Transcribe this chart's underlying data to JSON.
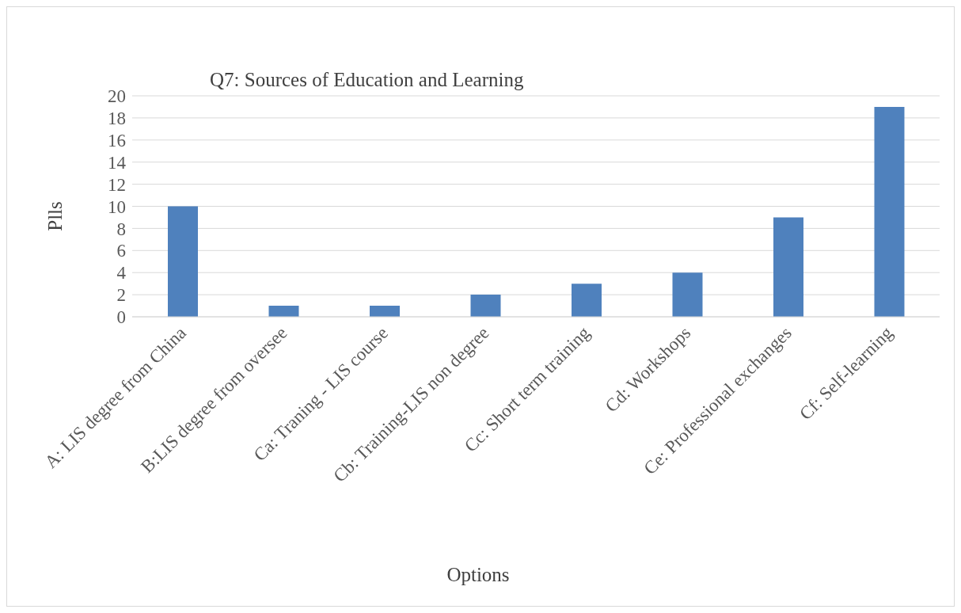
{
  "chart_data": {
    "type": "bar",
    "title": "Q7: Sources of Education and Learning",
    "xlabel": "Options",
    "ylabel": "Plls",
    "categories": [
      "A: LIS degree from China",
      "B:LIS degree from oversee",
      "Ca: Traning - LIS course",
      "Cb: Training-LIS non degree",
      "Cc: Short term training",
      "Cd: Workshops",
      "Ce: Professional exchanges",
      "Cf: Self-learning"
    ],
    "values": [
      10,
      1,
      1,
      2,
      3,
      4,
      9,
      19
    ],
    "color": "#4f81bd",
    "ylim": [
      0,
      20
    ],
    "yticks": [
      0,
      2,
      4,
      6,
      8,
      10,
      12,
      14,
      16,
      18,
      20
    ],
    "grid": "y"
  }
}
